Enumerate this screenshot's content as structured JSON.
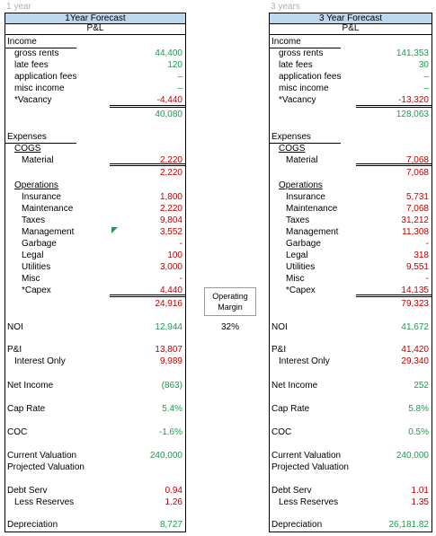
{
  "panels": [
    {
      "period": "1 year",
      "title": "1Year Forecast",
      "subtitle": "P&L",
      "rows": [
        {
          "label": "Income"
        },
        {
          "label": "gross rents",
          "value": "44,400",
          "color": "#1e9a4c"
        },
        {
          "label": "late fees",
          "value": "120",
          "color": "#1e9a4c"
        },
        {
          "label": "application fees",
          "value": "–",
          "color": "#1e9a4c"
        },
        {
          "label": "misc income",
          "value": "–",
          "color": "#1e9a4c"
        },
        {
          "label": "*Vacancy",
          "value": "-4,440",
          "color": "#c00000"
        },
        {
          "value": "40,080",
          "color": "#1e9a4c"
        },
        {
          "label": "Expenses"
        },
        {
          "label": "COGS"
        },
        {
          "label": "Material",
          "value": "2,220",
          "color": "#c00000"
        },
        {
          "value": "2,220",
          "color": "#c00000"
        },
        {
          "label": "Operations"
        },
        {
          "label": "Insurance",
          "value": "1,800",
          "color": "#c00000"
        },
        {
          "label": "Maintenance",
          "value": "2,220",
          "color": "#c00000"
        },
        {
          "label": "Taxes",
          "value": "9,804",
          "color": "#c00000"
        },
        {
          "label": "Management",
          "value": "3,552",
          "color": "#c00000"
        },
        {
          "label": "Garbage",
          "value": "-",
          "color": "#c00000"
        },
        {
          "label": "Legal",
          "value": "100",
          "color": "#c00000"
        },
        {
          "label": "Utilities",
          "value": "3,000",
          "color": "#c00000"
        },
        {
          "label": "Misc",
          "value": "-",
          "color": "#c00000"
        },
        {
          "label": "*Capex",
          "value": "4,440",
          "color": "#c00000"
        },
        {
          "value": "24,916",
          "color": "#c00000"
        },
        {
          "label": "NOI",
          "value": "12,944",
          "color": "#1e9a4c"
        },
        {
          "label": "P&I",
          "value": "13,807",
          "color": "#c00000"
        },
        {
          "label": "Interest Only",
          "value": "9,989",
          "color": "#c00000"
        },
        {
          "label": "Net Income",
          "value": "(863)",
          "color": "#1e9a4c"
        },
        {
          "label": "Cap Rate",
          "value": "5.4%",
          "color": "#1e9a4c"
        },
        {
          "label": "COC",
          "value": "-1.6%",
          "color": "#1e9a4c"
        },
        {
          "label": "Current Valuation",
          "value": "240,000",
          "color": "#1e9a4c"
        },
        {
          "label": "Projected Valuation"
        },
        {
          "label": "Debt Serv",
          "value": "0.94",
          "color": "#c00000"
        },
        {
          "label": "Less Reserves",
          "value": "1.26",
          "color": "#c00000"
        },
        {
          "label": "Depreciation",
          "value": "8,727",
          "color": "#1e9a4c"
        }
      ]
    },
    {
      "period": "3 years",
      "title": "3 Year Forecast",
      "subtitle": "P&L",
      "rows": [
        {
          "label": "Income"
        },
        {
          "label": "gross rents",
          "value": "141,353",
          "color": "#1e9a4c"
        },
        {
          "label": "late fees",
          "value": "30",
          "color": "#1e9a4c"
        },
        {
          "label": "application fees",
          "value": "–",
          "color": "#1e9a4c"
        },
        {
          "label": "misc income",
          "value": "–",
          "color": "#1e9a4c"
        },
        {
          "label": "*Vacancy",
          "value": "-13,320",
          "color": "#c00000"
        },
        {
          "value": "128,063",
          "color": "#1e9a4c"
        },
        {
          "label": "Expenses"
        },
        {
          "label": "COGS"
        },
        {
          "label": "Material",
          "value": "7,068",
          "color": "#c00000"
        },
        {
          "value": "7,068",
          "color": "#c00000"
        },
        {
          "label": "Operations"
        },
        {
          "label": "Insurance",
          "value": "5,731",
          "color": "#c00000"
        },
        {
          "label": "Maintenance",
          "value": "7,068",
          "color": "#c00000"
        },
        {
          "label": "Taxes",
          "value": "31,212",
          "color": "#c00000"
        },
        {
          "label": "Management",
          "value": "11,308",
          "color": "#c00000"
        },
        {
          "label": "Garbage",
          "value": "-",
          "color": "#c00000"
        },
        {
          "label": "Legal",
          "value": "318",
          "color": "#c00000"
        },
        {
          "label": "Utilities",
          "value": "9,551",
          "color": "#c00000"
        },
        {
          "label": "Misc",
          "value": "-",
          "color": "#c00000"
        },
        {
          "label": "*Capex",
          "value": "14,135",
          "color": "#c00000"
        },
        {
          "value": "79,323",
          "color": "#c00000"
        },
        {
          "label": "NOI",
          "value": "41,672",
          "color": "#1e9a4c"
        },
        {
          "label": "P&I",
          "value": "41,420",
          "color": "#c00000"
        },
        {
          "label": "Interest Only",
          "value": "29,340",
          "color": "#c00000"
        },
        {
          "label": "Net Income",
          "value": "252",
          "color": "#1e9a4c"
        },
        {
          "label": "Cap Rate",
          "value": "5.8%",
          "color": "#1e9a4c"
        },
        {
          "label": "COC",
          "value": "0.5%",
          "color": "#1e9a4c"
        },
        {
          "label": "Current Valuation",
          "value": "240,000",
          "color": "#1e9a4c"
        },
        {
          "label": "Projected Valuation"
        },
        {
          "label": "Debt Serv",
          "value": "1.01",
          "color": "#c00000"
        },
        {
          "label": "Less Reserves",
          "value": "1.35",
          "color": "#c00000"
        },
        {
          "label": "Depreciation",
          "value": "26,181.82",
          "color": "#1e9a4c"
        }
      ]
    }
  ],
  "middle": {
    "label": "Operating Margin",
    "value": "32%"
  }
}
